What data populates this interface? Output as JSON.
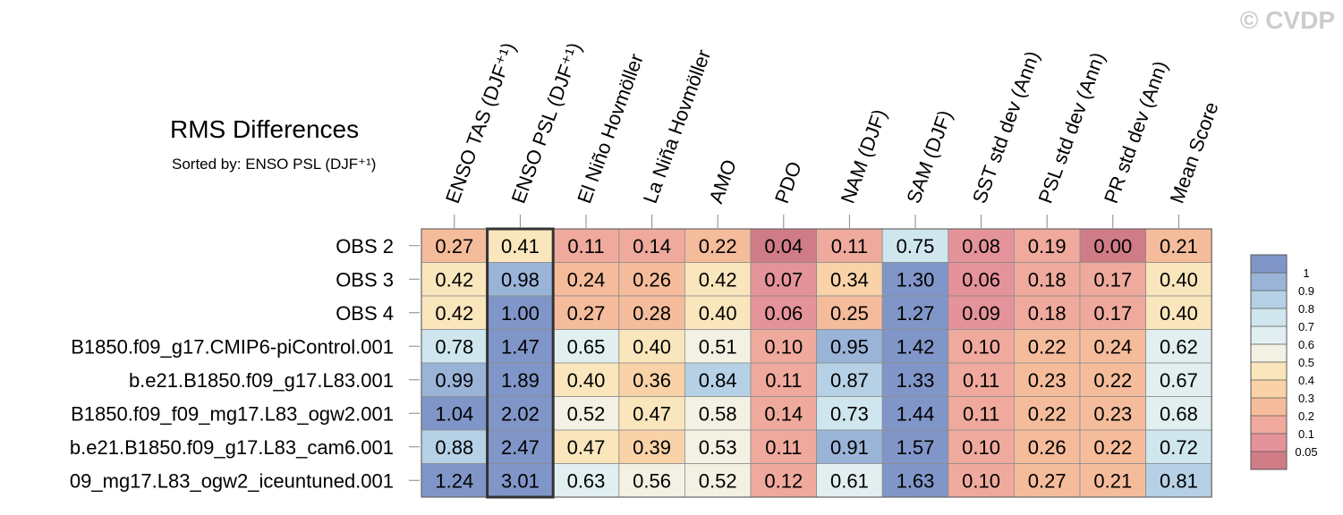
{
  "watermark": "© CVDP",
  "chart_data": {
    "type": "heatmap",
    "title": "RMS Differences",
    "subtitle": "Sorted by: ENSO PSL (DJF⁺¹)",
    "columns": [
      "ENSO TAS (DJF⁺¹)",
      "ENSO PSL (DJF⁺¹)",
      "El Niño Hovmöller",
      "La Niña Hovmöller",
      "AMO",
      "PDO",
      "NAM (DJF)",
      "SAM (DJF)",
      "SST std dev (Ann)",
      "PSL std dev (Ann)",
      "PR std dev (Ann)",
      "Mean Score"
    ],
    "rows": [
      "OBS 2",
      "OBS 3",
      "OBS 4",
      "B1850.f09_g17.CMIP6-piControl.001",
      "b.e21.B1850.f09_g17.L83.001",
      "B1850.f09_f09_mg17.L83_ogw2.001",
      "b.e21.B1850.f09_g17.L83_cam6.001",
      "09_mg17.L83_ogw2_iceuntuned.001"
    ],
    "values": [
      [
        "0.27",
        "0.41",
        "0.11",
        "0.14",
        "0.22",
        "0.04",
        "0.11",
        "0.75",
        "0.08",
        "0.19",
        "0.00",
        "0.21"
      ],
      [
        "0.42",
        "0.98",
        "0.24",
        "0.26",
        "0.42",
        "0.07",
        "0.34",
        "1.30",
        "0.06",
        "0.18",
        "0.17",
        "0.40"
      ],
      [
        "0.42",
        "1.00",
        "0.27",
        "0.28",
        "0.40",
        "0.06",
        "0.25",
        "1.27",
        "0.09",
        "0.18",
        "0.17",
        "0.40"
      ],
      [
        "0.78",
        "1.47",
        "0.65",
        "0.40",
        "0.51",
        "0.10",
        "0.95",
        "1.42",
        "0.10",
        "0.22",
        "0.24",
        "0.62"
      ],
      [
        "0.99",
        "1.89",
        "0.40",
        "0.36",
        "0.84",
        "0.11",
        "0.87",
        "1.33",
        "0.11",
        "0.23",
        "0.22",
        "0.67"
      ],
      [
        "1.04",
        "2.02",
        "0.52",
        "0.47",
        "0.58",
        "0.14",
        "0.73",
        "1.44",
        "0.11",
        "0.22",
        "0.23",
        "0.68"
      ],
      [
        "0.88",
        "2.47",
        "0.47",
        "0.39",
        "0.53",
        "0.11",
        "0.91",
        "1.57",
        "0.10",
        "0.26",
        "0.22",
        "0.72"
      ],
      [
        "1.24",
        "3.01",
        "0.63",
        "0.56",
        "0.52",
        "0.12",
        "0.61",
        "1.63",
        "0.10",
        "0.27",
        "0.21",
        "0.81"
      ]
    ],
    "highlighted_column": "ENSO PSL (DJF⁺¹)",
    "colorbar": {
      "levels": [
        0.05,
        0.1,
        0.2,
        0.3,
        0.4,
        0.5,
        0.6,
        0.7,
        0.8,
        0.9,
        1
      ],
      "labels": [
        "0.05",
        "0.1",
        "0.2",
        "0.3",
        "0.4",
        "0.5",
        "0.6",
        "0.7",
        "0.8",
        "0.9",
        "1"
      ],
      "colors": [
        "#d07c87",
        "#e4939a",
        "#efaa9d",
        "#f5bc9c",
        "#f9d2a8",
        "#fae6bc",
        "#f3f1e3",
        "#e2eff1",
        "#cfe6ee",
        "#b6d1e6",
        "#9ab4d8",
        "#8196c8"
      ]
    }
  }
}
